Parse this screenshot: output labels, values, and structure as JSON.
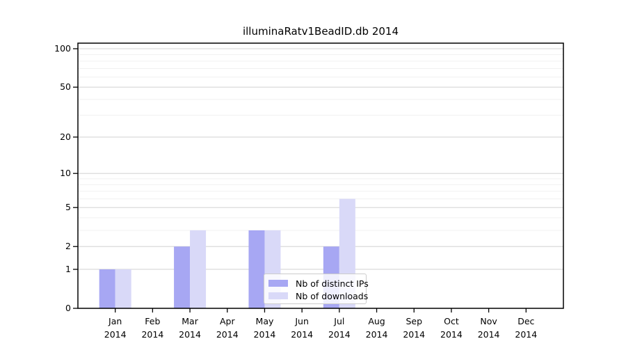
{
  "title": "illuminaRatv1BeadID.db 2014",
  "chart_data": {
    "type": "bar",
    "title": "illuminaRatv1BeadID.db 2014",
    "categories": [
      {
        "month": "Jan",
        "year": "2014"
      },
      {
        "month": "Feb",
        "year": "2014"
      },
      {
        "month": "Mar",
        "year": "2014"
      },
      {
        "month": "Apr",
        "year": "2014"
      },
      {
        "month": "May",
        "year": "2014"
      },
      {
        "month": "Jun",
        "year": "2014"
      },
      {
        "month": "Jul",
        "year": "2014"
      },
      {
        "month": "Aug",
        "year": "2014"
      },
      {
        "month": "Sep",
        "year": "2014"
      },
      {
        "month": "Oct",
        "year": "2014"
      },
      {
        "month": "Nov",
        "year": "2014"
      },
      {
        "month": "Dec",
        "year": "2014"
      }
    ],
    "series": [
      {
        "name": "Nb of distinct IPs",
        "color": "#a7a7f3",
        "values": [
          1,
          0,
          2,
          0,
          3,
          0,
          2,
          0,
          0,
          0,
          0,
          0
        ]
      },
      {
        "name": "Nb of downloads",
        "color": "#d9d9f8",
        "values": [
          1,
          0,
          3,
          0,
          3,
          0,
          6,
          0,
          0,
          0,
          0,
          0
        ]
      }
    ],
    "y_axis": {
      "scale": "log1p",
      "major_ticks": [
        0,
        1,
        2,
        5,
        10,
        20,
        50,
        100
      ],
      "minor_gridlines": [
        3,
        4,
        6,
        7,
        8,
        9,
        30,
        40,
        60,
        70,
        80,
        90
      ],
      "ylim": [
        0,
        110
      ]
    },
    "xlabel": "",
    "ylabel": "",
    "grid": "horizontal",
    "legend_position": "inside-bottom-center",
    "colors": {
      "major_gridline": "#d6d6d6",
      "minor_gridline": "#f0f0f0",
      "spine": "#000000",
      "background": "#ffffff"
    }
  }
}
